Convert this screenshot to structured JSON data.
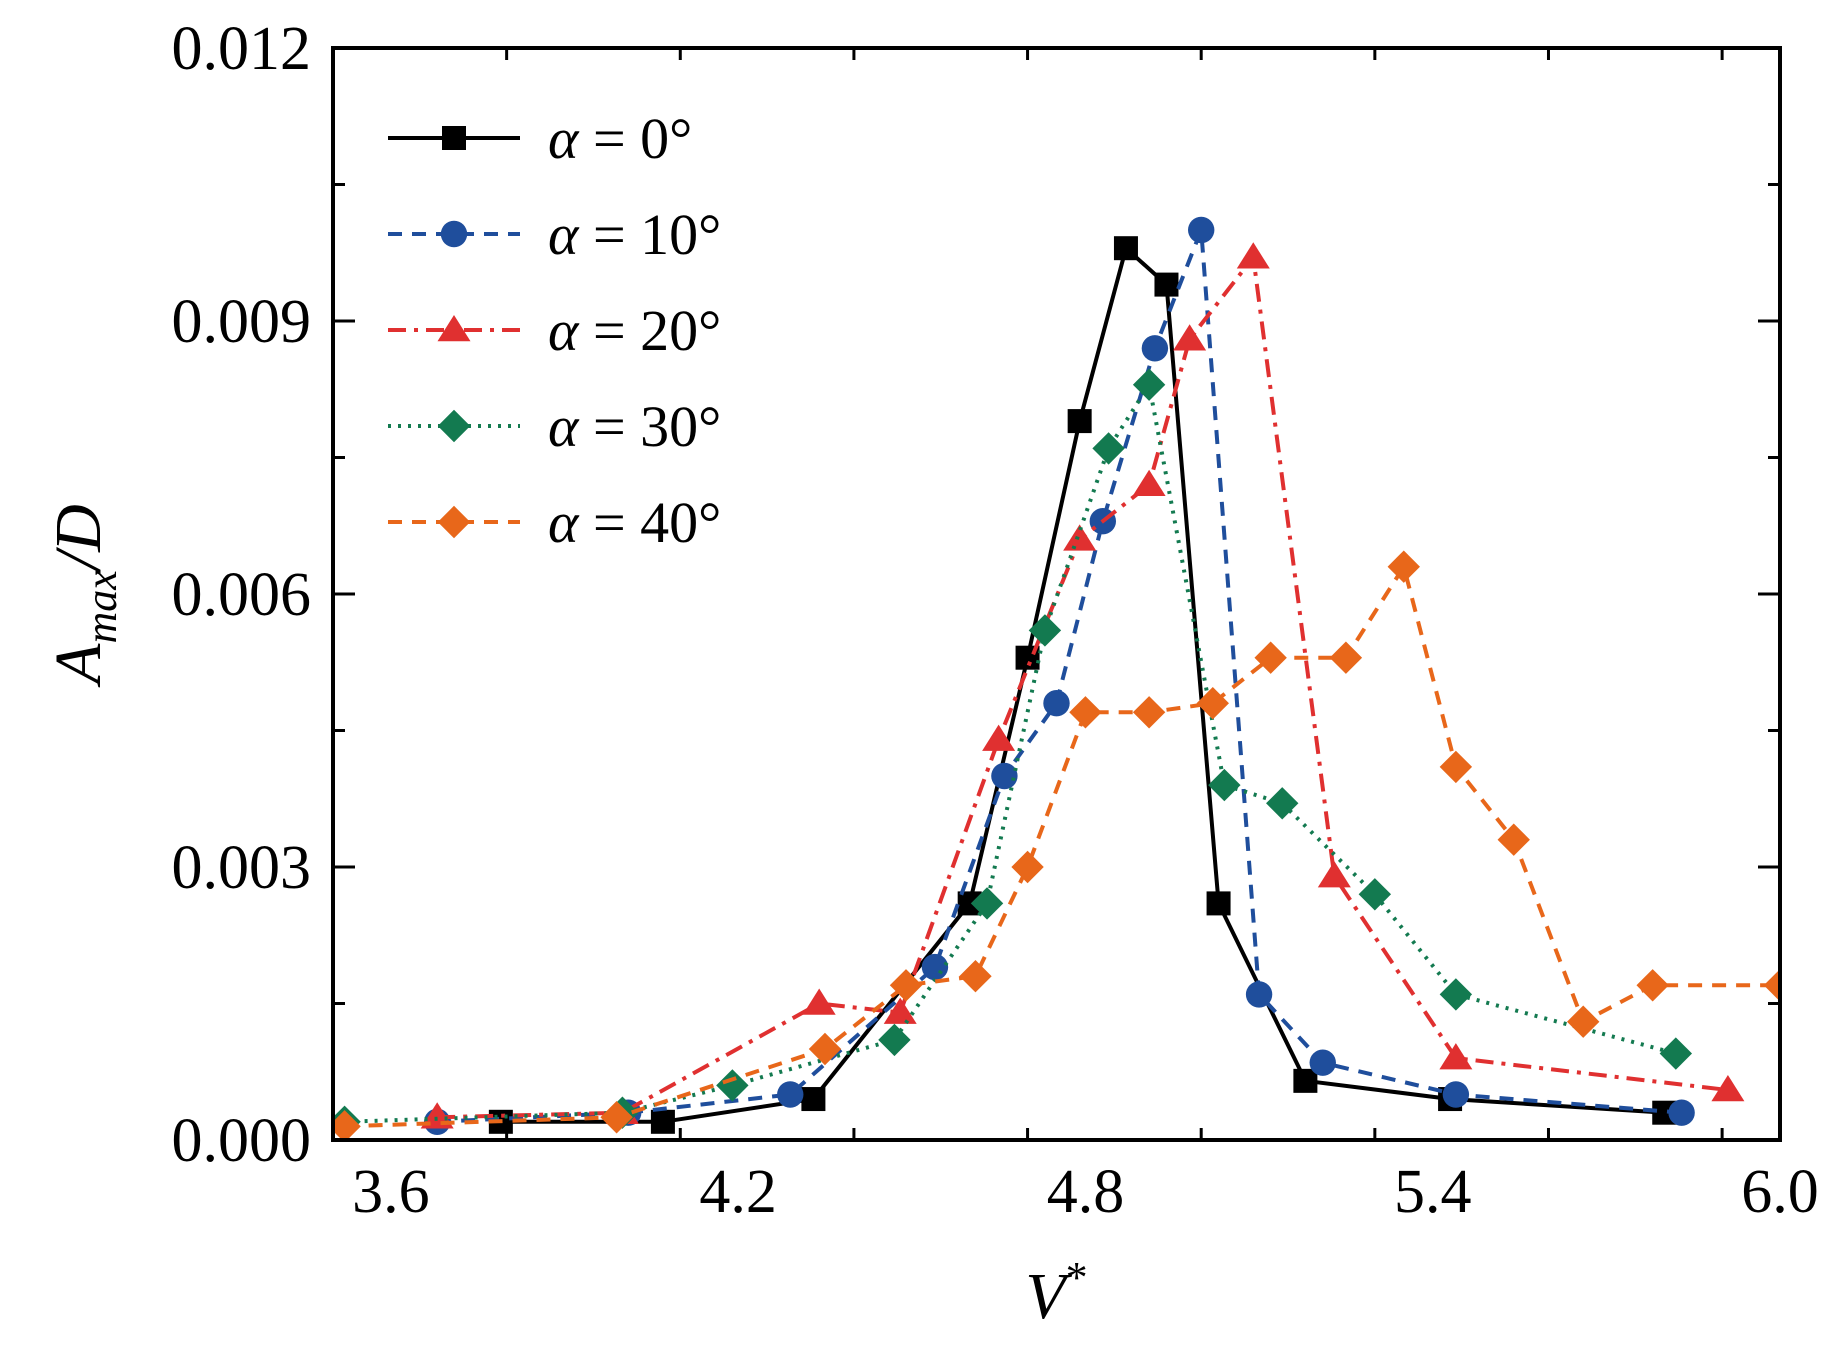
{
  "chart_data": {
    "type": "line",
    "title": "",
    "xlabel": "V*",
    "ylabel": "A_max/D",
    "xlabel_parts": {
      "base": "V",
      "sup": "*"
    },
    "ylabel_parts": {
      "base": "A",
      "sub": "max",
      "rest": "/D"
    },
    "xlim": [
      3.5,
      6.0
    ],
    "ylim": [
      0.0,
      0.012
    ],
    "xticks": [
      3.6,
      4.2,
      4.8,
      5.4,
      6.0
    ],
    "xtick_labels": [
      "3.6",
      "4.2",
      "4.8",
      "5.4",
      "6.0"
    ],
    "yticks": [
      0.0,
      0.003,
      0.006,
      0.009,
      0.012
    ],
    "ytick_labels": [
      "0.000",
      "0.003",
      "0.006",
      "0.009",
      "0.012"
    ],
    "grid": false,
    "legend_position": "top-left",
    "series": [
      {
        "name": "α = 0°",
        "label_alpha": "α",
        "label_eq": " = ",
        "label_value": "0°",
        "color": "#000000",
        "marker": "square",
        "dash": "solid",
        "x": [
          3.79,
          4.07,
          4.33,
          4.6,
          4.7,
          4.79,
          4.87,
          4.94,
          5.03,
          5.18,
          5.43,
          5.8
        ],
        "y": [
          0.0002,
          0.0002,
          0.00045,
          0.0026,
          0.0053,
          0.0079,
          0.0098,
          0.0094,
          0.0026,
          0.00065,
          0.00045,
          0.0003
        ]
      },
      {
        "name": "α = 10°",
        "label_alpha": "α",
        "label_eq": " = ",
        "label_value": "10°",
        "color": "#1f4e9c",
        "marker": "circle",
        "dash": "dashed",
        "x": [
          3.68,
          4.01,
          4.29,
          4.54,
          4.66,
          4.75,
          4.83,
          4.92,
          5.0,
          5.1,
          5.21,
          5.44,
          5.83
        ],
        "y": [
          0.0002,
          0.0003,
          0.0005,
          0.0019,
          0.004,
          0.0048,
          0.0068,
          0.0087,
          0.01,
          0.0016,
          0.00085,
          0.0005,
          0.0003
        ]
      },
      {
        "name": "α = 20°",
        "label_alpha": "α",
        "label_eq": " = ",
        "label_value": "20°",
        "color": "#e03030",
        "marker": "triangle",
        "dash": "dashdot",
        "x": [
          3.68,
          4.0,
          4.34,
          4.48,
          4.65,
          4.79,
          4.91,
          4.98,
          5.09,
          5.23,
          5.44,
          5.91
        ],
        "y": [
          0.00025,
          0.0003,
          0.0015,
          0.0014,
          0.0044,
          0.0066,
          0.0072,
          0.0088,
          0.0097,
          0.0029,
          0.0009,
          0.00055
        ]
      },
      {
        "name": "α = 30°",
        "label_alpha": "α",
        "label_eq": " = ",
        "label_value": "30°",
        "color": "#137a50",
        "marker": "diamond",
        "dash": "dotted",
        "x": [
          3.52,
          4.0,
          4.19,
          4.47,
          4.63,
          4.73,
          4.84,
          4.91,
          5.04,
          5.14,
          5.3,
          5.44,
          5.82
        ],
        "y": [
          0.0002,
          0.0003,
          0.0006,
          0.0011,
          0.0026,
          0.0056,
          0.0076,
          0.0083,
          0.0039,
          0.0037,
          0.0027,
          0.0016,
          0.00095
        ]
      },
      {
        "name": "α = 40°",
        "label_alpha": "α",
        "label_eq": " = ",
        "label_value": "40°",
        "color": "#e8671a",
        "marker": "diamond",
        "dash": "dashed",
        "x": [
          3.52,
          3.99,
          4.35,
          4.49,
          4.61,
          4.7,
          4.8,
          4.91,
          5.02,
          5.12,
          5.25,
          5.35,
          5.44,
          5.54,
          5.66,
          5.78,
          6.0
        ],
        "y": [
          0.00015,
          0.00025,
          0.001,
          0.0017,
          0.0018,
          0.003,
          0.0047,
          0.0047,
          0.0048,
          0.0053,
          0.0053,
          0.0063,
          0.0041,
          0.0033,
          0.0013,
          0.0017,
          0.0017
        ]
      }
    ]
  }
}
